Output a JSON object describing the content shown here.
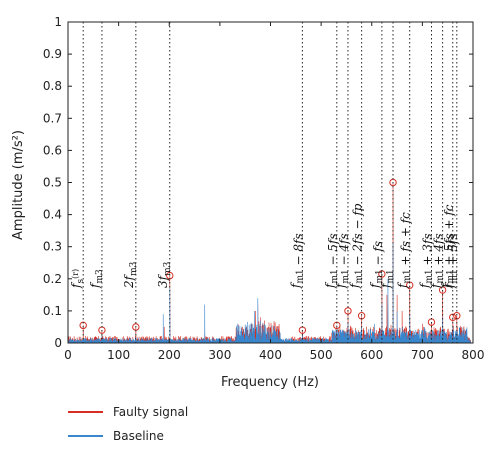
{
  "chart_data": {
    "type": "line",
    "xlabel": "Frequency (Hz)",
    "ylabel": "Amplitude (m/s²)",
    "xlim": [
      0,
      800
    ],
    "ylim": [
      0,
      1
    ],
    "xticks": [
      "0",
      "100",
      "200",
      "300",
      "400",
      "500",
      "600",
      "700",
      "800"
    ],
    "yticks": [
      "0",
      "0.1",
      "0.2",
      "0.3",
      "0.4",
      "0.5",
      "0.6",
      "0.7",
      "0.8",
      "0.9",
      "1"
    ],
    "grid": false,
    "legend_position": "bottom-left",
    "series": [
      {
        "name": "Faulty signal",
        "color": "#d62e22",
        "peaks": [
          [
            30,
            0.055
          ],
          [
            67,
            0.04
          ],
          [
            134,
            0.05
          ],
          [
            190,
            0.05
          ],
          [
            201,
            0.21
          ],
          [
            270,
            0.03
          ],
          [
            335,
            0.04
          ],
          [
            370,
            0.1
          ],
          [
            375,
            0.12
          ],
          [
            380,
            0.08
          ],
          [
            463,
            0.04
          ],
          [
            531,
            0.055
          ],
          [
            553,
            0.1
          ],
          [
            580,
            0.085
          ],
          [
            603,
            0.05
          ],
          [
            620,
            0.215
          ],
          [
            630,
            0.15
          ],
          [
            642,
            0.5
          ],
          [
            650,
            0.15
          ],
          [
            660,
            0.1
          ],
          [
            675,
            0.18
          ],
          [
            700,
            0.06
          ],
          [
            718,
            0.065
          ],
          [
            740,
            0.165
          ],
          [
            760,
            0.08
          ],
          [
            768,
            0.085
          ]
        ]
      },
      {
        "name": "Baseline",
        "color": "#3a86cc",
        "peaks": [
          [
            30,
            0.01
          ],
          [
            67,
            0.03
          ],
          [
            134,
            0.02
          ],
          [
            188,
            0.09
          ],
          [
            201,
            0.17
          ],
          [
            270,
            0.12
          ],
          [
            335,
            0.06
          ],
          [
            368,
            0.1
          ],
          [
            375,
            0.14
          ],
          [
            380,
            0.07
          ],
          [
            463,
            0.03
          ],
          [
            531,
            0.04
          ],
          [
            553,
            0.06
          ],
          [
            580,
            0.05
          ],
          [
            605,
            0.06
          ],
          [
            620,
            0.12
          ],
          [
            632,
            0.2
          ],
          [
            642,
            0.31
          ],
          [
            650,
            0.1
          ],
          [
            675,
            0.09
          ],
          [
            700,
            0.04
          ],
          [
            740,
            0.08
          ],
          [
            760,
            0.05
          ]
        ]
      }
    ],
    "markers": [
      [
        30,
        0.055
      ],
      [
        67,
        0.04
      ],
      [
        134,
        0.05
      ],
      [
        201,
        0.21
      ],
      [
        463,
        0.04
      ],
      [
        531,
        0.055
      ],
      [
        553,
        0.1
      ],
      [
        580,
        0.085
      ],
      [
        620,
        0.215
      ],
      [
        642,
        0.5
      ],
      [
        675,
        0.18
      ],
      [
        718,
        0.065
      ],
      [
        740,
        0.165
      ],
      [
        760,
        0.08
      ],
      [
        768,
        0.085
      ]
    ],
    "annotations": [
      {
        "x": 30,
        "base": "f",
        "sub": "s",
        "sup": "(r)",
        "rest": ""
      },
      {
        "x": 67,
        "base": "f",
        "sub": "m3",
        "sup": "",
        "rest": ""
      },
      {
        "x": 134,
        "base": "2f",
        "sub": "m3",
        "sup": "",
        "rest": ""
      },
      {
        "x": 201,
        "base": "3f",
        "sub": "m3",
        "sup": "",
        "rest": ""
      },
      {
        "x": 463,
        "base": "f",
        "sub": "m1",
        "sup": "",
        "rest": " − 8f_s"
      },
      {
        "x": 531,
        "base": "f",
        "sub": "m1",
        "sup": "",
        "rest": " − 5f_s"
      },
      {
        "x": 553,
        "base": "f",
        "sub": "m1",
        "sup": "",
        "rest": " − 4f_s"
      },
      {
        "x": 580,
        "base": "f",
        "sub": "m1",
        "sup": "",
        "rest": " − 2f_s − f_p"
      },
      {
        "x": 620,
        "base": "f",
        "sub": "m1",
        "sup": "",
        "rest": " − f_s"
      },
      {
        "x": 642,
        "base": "f",
        "sub": "m1",
        "sup": "",
        "rest": ""
      },
      {
        "x": 675,
        "base": "f",
        "sub": "m1",
        "sup": "",
        "rest": " + f_s + f_c"
      },
      {
        "x": 718,
        "base": "f",
        "sub": "m1",
        "sup": "",
        "rest": " + 3f_s"
      },
      {
        "x": 740,
        "base": "f",
        "sub": "m1",
        "sup": "",
        "rest": " + 4f_s"
      },
      {
        "x": 760,
        "base": "f",
        "sub": "m1",
        "sup": "",
        "rest": " + 5f_s + f_c"
      },
      {
        "x": 768,
        "base": "f",
        "sub": "m1",
        "sup": "",
        "rest": " + 5f_s"
      }
    ]
  },
  "legend": {
    "faulty_label": "Faulty signal",
    "baseline_label": "Baseline"
  }
}
